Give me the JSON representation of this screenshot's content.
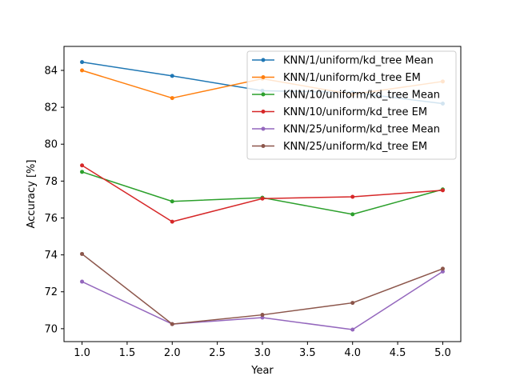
{
  "chart_data": {
    "type": "line",
    "title": "",
    "xlabel": "Year",
    "ylabel": "Accuracy [%]",
    "x": [
      1.0,
      2.0,
      3.0,
      4.0,
      5.0
    ],
    "xlim": [
      0.8,
      5.2
    ],
    "ylim": [
      69.3,
      85.3
    ],
    "xticks": [
      1.0,
      1.5,
      2.0,
      2.5,
      3.0,
      3.5,
      4.0,
      4.5,
      5.0
    ],
    "xtick_labels": [
      "1.0",
      "1.5",
      "2.0",
      "2.5",
      "3.0",
      "3.5",
      "4.0",
      "4.5",
      "5.0"
    ],
    "yticks": [
      70,
      72,
      74,
      76,
      78,
      80,
      82,
      84
    ],
    "ytick_labels": [
      "70",
      "72",
      "74",
      "76",
      "78",
      "80",
      "82",
      "84"
    ],
    "grid": false,
    "legend_position": "top-right",
    "series": [
      {
        "name": "KNN/1/uniform/kd_tree Mean",
        "color": "#1f77b4",
        "values": [
          84.45,
          83.7,
          82.9,
          82.8,
          82.2
        ]
      },
      {
        "name": "KNN/1/uniform/kd_tree EM",
        "color": "#ff7f0e",
        "values": [
          84.0,
          82.5,
          83.55,
          82.7,
          83.4
        ]
      },
      {
        "name": "KNN/10/uniform/kd_tree Mean",
        "color": "#2ca02c",
        "values": [
          78.5,
          76.9,
          77.1,
          76.2,
          77.55
        ]
      },
      {
        "name": "KNN/10/uniform/kd_tree EM",
        "color": "#d62728",
        "values": [
          78.85,
          75.8,
          77.05,
          77.15,
          77.5
        ]
      },
      {
        "name": "KNN/25/uniform/kd_tree Mean",
        "color": "#9467bd",
        "values": [
          72.55,
          70.25,
          70.6,
          69.95,
          73.1
        ]
      },
      {
        "name": "KNN/25/uniform/kd_tree EM",
        "color": "#8c564b",
        "values": [
          74.05,
          70.25,
          70.75,
          71.4,
          73.25
        ]
      }
    ]
  }
}
